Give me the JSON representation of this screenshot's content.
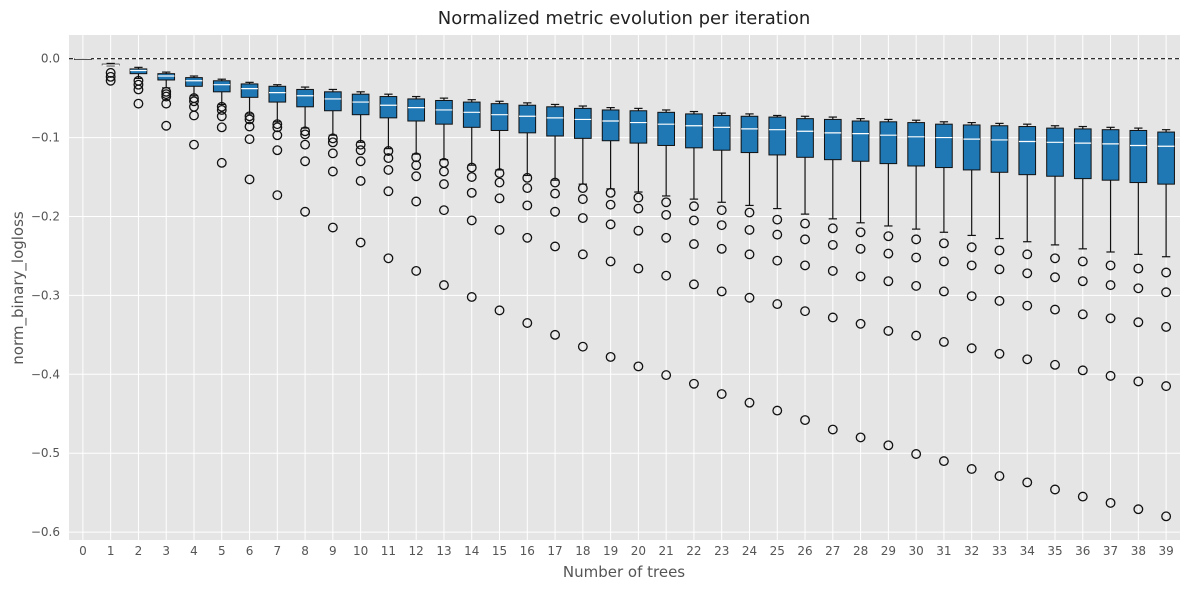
{
  "chart_data": {
    "type": "boxplot",
    "title": "Normalized metric evolution per iteration",
    "xlabel": "Number of trees",
    "ylabel": "norm_binary_logloss",
    "x": [
      0,
      1,
      2,
      3,
      4,
      5,
      6,
      7,
      8,
      9,
      10,
      11,
      12,
      13,
      14,
      15,
      16,
      17,
      18,
      19,
      20,
      21,
      22,
      23,
      24,
      25,
      26,
      27,
      28,
      29,
      30,
      31,
      32,
      33,
      34,
      35,
      36,
      37,
      38,
      39
    ],
    "x_tick_labels": [
      "0",
      "1",
      "2",
      "3",
      "4",
      "5",
      "6",
      "7",
      "8",
      "9",
      "10",
      "11",
      "12",
      "13",
      "14",
      "15",
      "16",
      "17",
      "18",
      "19",
      "20",
      "21",
      "22",
      "23",
      "24",
      "25",
      "26",
      "27",
      "28",
      "29",
      "30",
      "31",
      "32",
      "33",
      "34",
      "35",
      "36",
      "37",
      "38",
      "39"
    ],
    "ylim": [
      -0.61,
      0.03
    ],
    "y_ticks": [
      0.0,
      -0.1,
      -0.2,
      -0.3,
      -0.4,
      -0.5,
      -0.6
    ],
    "y_tick_labels": [
      "0.0",
      "−0.1",
      "−0.2",
      "−0.3",
      "−0.4",
      "−0.5",
      "−0.6"
    ],
    "reference_line": {
      "y": 0.0,
      "style": "dashed",
      "color": "#111111"
    },
    "grid": true,
    "colors": {
      "box": "#1f77b4",
      "median": "#ffffff",
      "background": "#e5e5e5",
      "grid": "#ffffff"
    },
    "boxes": [
      {
        "x": 0,
        "q1": 0.0,
        "median": 0.0,
        "q3": 0.0,
        "whislo": 0.0,
        "whishi": 0.0,
        "fliers": []
      },
      {
        "x": 1,
        "q1": -0.008,
        "median": -0.008,
        "q3": -0.007,
        "whislo": -0.009,
        "whishi": -0.006,
        "fliers": [
          -0.018,
          -0.023,
          -0.028
        ]
      },
      {
        "x": 2,
        "q1": -0.019,
        "median": -0.015,
        "q3": -0.013,
        "whislo": -0.025,
        "whishi": -0.011,
        "fliers": [
          -0.028,
          -0.033,
          -0.039,
          -0.057
        ]
      },
      {
        "x": 3,
        "q1": -0.027,
        "median": -0.022,
        "q3": -0.019,
        "whislo": -0.037,
        "whishi": -0.017,
        "fliers": [
          -0.042,
          -0.045,
          -0.048,
          -0.057,
          -0.085
        ]
      },
      {
        "x": 4,
        "q1": -0.035,
        "median": -0.028,
        "q3": -0.024,
        "whislo": -0.047,
        "whishi": -0.022,
        "fliers": [
          -0.05,
          -0.054,
          -0.061,
          -0.072,
          -0.109
        ]
      },
      {
        "x": 5,
        "q1": -0.042,
        "median": -0.033,
        "q3": -0.028,
        "whislo": -0.058,
        "whishi": -0.026,
        "fliers": [
          -0.061,
          -0.065,
          -0.073,
          -0.087,
          -0.132
        ]
      },
      {
        "x": 6,
        "q1": -0.049,
        "median": -0.038,
        "q3": -0.032,
        "whislo": -0.07,
        "whishi": -0.03,
        "fliers": [
          -0.073,
          -0.077,
          -0.086,
          -0.102,
          -0.153
        ]
      },
      {
        "x": 7,
        "q1": -0.055,
        "median": -0.043,
        "q3": -0.035,
        "whislo": -0.08,
        "whishi": -0.033,
        "fliers": [
          -0.083,
          -0.087,
          -0.097,
          -0.116,
          -0.173
        ]
      },
      {
        "x": 8,
        "q1": -0.061,
        "median": -0.047,
        "q3": -0.039,
        "whislo": -0.088,
        "whishi": -0.036,
        "fliers": [
          -0.092,
          -0.096,
          -0.109,
          -0.13,
          -0.194
        ]
      },
      {
        "x": 9,
        "q1": -0.066,
        "median": -0.051,
        "q3": -0.042,
        "whislo": -0.097,
        "whishi": -0.039,
        "fliers": [
          -0.101,
          -0.106,
          -0.12,
          -0.143,
          -0.214
        ]
      },
      {
        "x": 10,
        "q1": -0.071,
        "median": -0.055,
        "q3": -0.045,
        "whislo": -0.106,
        "whishi": -0.042,
        "fliers": [
          -0.109,
          -0.116,
          -0.13,
          -0.155,
          -0.233
        ]
      },
      {
        "x": 11,
        "q1": -0.075,
        "median": -0.059,
        "q3": -0.048,
        "whislo": -0.114,
        "whishi": -0.045,
        "fliers": [
          -0.117,
          -0.126,
          -0.141,
          -0.168,
          -0.253
        ]
      },
      {
        "x": 12,
        "q1": -0.079,
        "median": -0.062,
        "q3": -0.051,
        "whislo": -0.121,
        "whishi": -0.048,
        "fliers": [
          -0.125,
          -0.135,
          -0.149,
          -0.181,
          -0.269
        ]
      },
      {
        "x": 13,
        "q1": -0.083,
        "median": -0.065,
        "q3": -0.053,
        "whislo": -0.128,
        "whishi": -0.05,
        "fliers": [
          -0.132,
          -0.143,
          -0.159,
          -0.192,
          -0.287
        ]
      },
      {
        "x": 14,
        "q1": -0.087,
        "median": -0.068,
        "q3": -0.055,
        "whislo": -0.135,
        "whishi": -0.052,
        "fliers": [
          -0.138,
          -0.15,
          -0.17,
          -0.205,
          -0.302
        ]
      },
      {
        "x": 15,
        "q1": -0.091,
        "median": -0.071,
        "q3": -0.057,
        "whislo": -0.141,
        "whishi": -0.054,
        "fliers": [
          -0.145,
          -0.157,
          -0.177,
          -0.217,
          -0.319
        ]
      },
      {
        "x": 16,
        "q1": -0.094,
        "median": -0.073,
        "q3": -0.059,
        "whislo": -0.148,
        "whishi": -0.056,
        "fliers": [
          -0.151,
          -0.164,
          -0.186,
          -0.227,
          -0.335
        ]
      },
      {
        "x": 17,
        "q1": -0.098,
        "median": -0.075,
        "q3": -0.061,
        "whislo": -0.154,
        "whishi": -0.058,
        "fliers": [
          -0.157,
          -0.171,
          -0.194,
          -0.238,
          -0.35
        ]
      },
      {
        "x": 18,
        "q1": -0.101,
        "median": -0.077,
        "q3": -0.063,
        "whislo": -0.159,
        "whishi": -0.06,
        "fliers": [
          -0.164,
          -0.178,
          -0.202,
          -0.248,
          -0.365
        ]
      },
      {
        "x": 19,
        "q1": -0.104,
        "median": -0.079,
        "q3": -0.065,
        "whislo": -0.165,
        "whishi": -0.062,
        "fliers": [
          -0.17,
          -0.185,
          -0.21,
          -0.257,
          -0.378
        ]
      },
      {
        "x": 20,
        "q1": -0.107,
        "median": -0.081,
        "q3": -0.066,
        "whislo": -0.169,
        "whishi": -0.063,
        "fliers": [
          -0.176,
          -0.19,
          -0.218,
          -0.266,
          -0.39
        ]
      },
      {
        "x": 21,
        "q1": -0.11,
        "median": -0.083,
        "q3": -0.068,
        "whislo": -0.174,
        "whishi": -0.065,
        "fliers": [
          -0.182,
          -0.198,
          -0.227,
          -0.275,
          -0.401
        ]
      },
      {
        "x": 22,
        "q1": -0.113,
        "median": -0.085,
        "q3": -0.07,
        "whislo": -0.178,
        "whishi": -0.067,
        "fliers": [
          -0.187,
          -0.205,
          -0.235,
          -0.286,
          -0.412
        ]
      },
      {
        "x": 23,
        "q1": -0.116,
        "median": -0.087,
        "q3": -0.072,
        "whislo": -0.182,
        "whishi": -0.069,
        "fliers": [
          -0.192,
          -0.211,
          -0.241,
          -0.295,
          -0.425
        ]
      },
      {
        "x": 24,
        "q1": -0.119,
        "median": -0.089,
        "q3": -0.073,
        "whislo": -0.186,
        "whishi": -0.07,
        "fliers": [
          -0.195,
          -0.217,
          -0.248,
          -0.303,
          -0.436
        ]
      },
      {
        "x": 25,
        "q1": -0.122,
        "median": -0.09,
        "q3": -0.074,
        "whislo": -0.19,
        "whishi": -0.072,
        "fliers": [
          -0.204,
          -0.223,
          -0.256,
          -0.311,
          -0.446
        ]
      },
      {
        "x": 26,
        "q1": -0.125,
        "median": -0.092,
        "q3": -0.076,
        "whislo": -0.197,
        "whishi": -0.073,
        "fliers": [
          -0.209,
          -0.229,
          -0.262,
          -0.32,
          -0.458
        ]
      },
      {
        "x": 27,
        "q1": -0.128,
        "median": -0.094,
        "q3": -0.077,
        "whislo": -0.203,
        "whishi": -0.074,
        "fliers": [
          -0.215,
          -0.236,
          -0.269,
          -0.328,
          -0.47
        ]
      },
      {
        "x": 28,
        "q1": -0.13,
        "median": -0.095,
        "q3": -0.079,
        "whislo": -0.208,
        "whishi": -0.076,
        "fliers": [
          -0.22,
          -0.241,
          -0.276,
          -0.336,
          -0.48
        ]
      },
      {
        "x": 29,
        "q1": -0.133,
        "median": -0.097,
        "q3": -0.08,
        "whislo": -0.212,
        "whishi": -0.077,
        "fliers": [
          -0.225,
          -0.247,
          -0.282,
          -0.345,
          -0.49
        ]
      },
      {
        "x": 30,
        "q1": -0.136,
        "median": -0.099,
        "q3": -0.081,
        "whislo": -0.216,
        "whishi": -0.078,
        "fliers": [
          -0.229,
          -0.252,
          -0.288,
          -0.351,
          -0.501
        ]
      },
      {
        "x": 31,
        "q1": -0.138,
        "median": -0.1,
        "q3": -0.083,
        "whislo": -0.22,
        "whishi": -0.08,
        "fliers": [
          -0.234,
          -0.257,
          -0.295,
          -0.359,
          -0.51
        ]
      },
      {
        "x": 32,
        "q1": -0.141,
        "median": -0.102,
        "q3": -0.084,
        "whislo": -0.224,
        "whishi": -0.081,
        "fliers": [
          -0.239,
          -0.262,
          -0.301,
          -0.367,
          -0.52
        ]
      },
      {
        "x": 33,
        "q1": -0.144,
        "median": -0.103,
        "q3": -0.085,
        "whislo": -0.228,
        "whishi": -0.082,
        "fliers": [
          -0.243,
          -0.267,
          -0.307,
          -0.374,
          -0.529
        ]
      },
      {
        "x": 34,
        "q1": -0.147,
        "median": -0.105,
        "q3": -0.086,
        "whislo": -0.232,
        "whishi": -0.083,
        "fliers": [
          -0.248,
          -0.272,
          -0.313,
          -0.381,
          -0.537
        ]
      },
      {
        "x": 35,
        "q1": -0.149,
        "median": -0.106,
        "q3": -0.088,
        "whislo": -0.236,
        "whishi": -0.085,
        "fliers": [
          -0.253,
          -0.277,
          -0.318,
          -0.388,
          -0.546
        ]
      },
      {
        "x": 36,
        "q1": -0.152,
        "median": -0.107,
        "q3": -0.089,
        "whislo": -0.241,
        "whishi": -0.086,
        "fliers": [
          -0.257,
          -0.282,
          -0.324,
          -0.395,
          -0.555
        ]
      },
      {
        "x": 37,
        "q1": -0.154,
        "median": -0.108,
        "q3": -0.09,
        "whislo": -0.245,
        "whishi": -0.087,
        "fliers": [
          -0.262,
          -0.287,
          -0.329,
          -0.402,
          -0.563
        ]
      },
      {
        "x": 38,
        "q1": -0.157,
        "median": -0.11,
        "q3": -0.091,
        "whislo": -0.248,
        "whishi": -0.088,
        "fliers": [
          -0.266,
          -0.291,
          -0.334,
          -0.409,
          -0.571
        ]
      },
      {
        "x": 39,
        "q1": -0.159,
        "median": -0.111,
        "q3": -0.093,
        "whislo": -0.251,
        "whishi": -0.09,
        "fliers": [
          -0.271,
          -0.296,
          -0.34,
          -0.415,
          -0.58
        ]
      }
    ]
  }
}
